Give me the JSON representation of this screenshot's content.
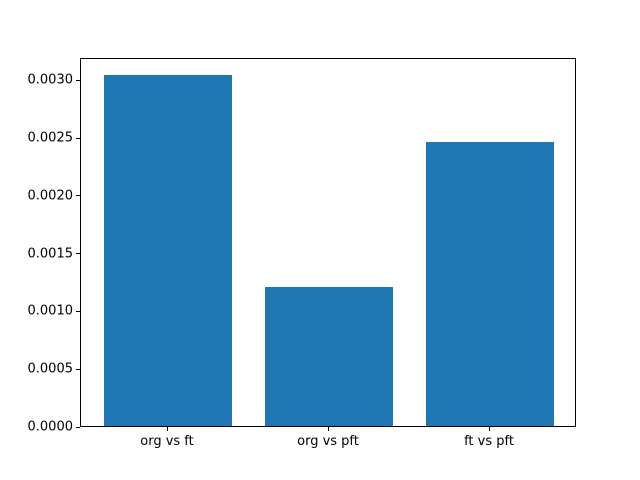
{
  "chart_data": {
    "type": "bar",
    "categories": [
      "org vs ft",
      "org vs pft",
      "ft vs pft"
    ],
    "values": [
      0.00304,
      0.0012,
      0.00246
    ],
    "title": "",
    "xlabel": "",
    "ylabel": "",
    "ylim": [
      0,
      0.003192
    ],
    "xlim": [
      -0.54,
      2.54
    ],
    "bar_width": 0.8,
    "yticks": [
      0.0,
      0.0005,
      0.001,
      0.0015,
      0.002,
      0.0025,
      0.003
    ],
    "ytick_labels": [
      "0.0000",
      "0.0005",
      "0.0010",
      "0.0015",
      "0.0020",
      "0.0025",
      "0.0030"
    ],
    "bar_color": "#1f77b4",
    "grid": false,
    "legend": null
  }
}
